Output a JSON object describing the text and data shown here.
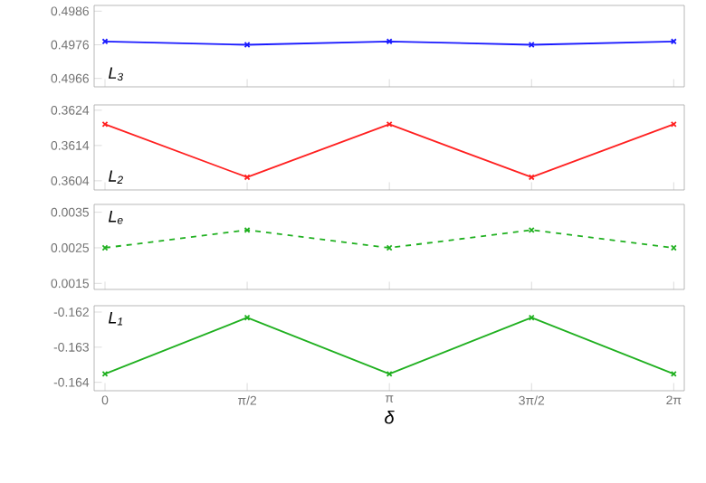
{
  "chart_data": [
    {
      "type": "line",
      "x": [
        0,
        1.5708,
        3.1416,
        4.7124,
        6.2832
      ],
      "xlim": [
        -0.12,
        6.4
      ],
      "xticks": [
        {
          "value": 0,
          "label": null
        },
        {
          "value": 1.5708,
          "label": null
        },
        {
          "value": 3.1416,
          "label": null
        },
        {
          "value": 4.7124,
          "label": null
        },
        {
          "value": 6.2832,
          "label": null
        }
      ],
      "ylim": [
        0.49635,
        0.49877
      ],
      "yticks": [
        0.4966,
        0.4976,
        0.4986
      ],
      "tick_labels": "y",
      "marker": "cross",
      "line_style": "solid",
      "annotations": [
        "L$_{3}$"
      ],
      "series": [
        {
          "color": "#1a1aff",
          "values": [
            0.4977,
            0.4976,
            0.4977,
            0.4976,
            0.4977
          ]
        }
      ]
    },
    {
      "type": "line",
      "x": [
        0,
        1.5708,
        3.1416,
        4.7124,
        6.2832
      ],
      "xlim": [
        -0.12,
        6.4
      ],
      "xticks": [
        {
          "value": 0,
          "label": null
        },
        {
          "value": 1.5708,
          "label": null
        },
        {
          "value": 3.1416,
          "label": null
        },
        {
          "value": 4.7124,
          "label": null
        },
        {
          "value": 6.2832,
          "label": null
        }
      ],
      "ylim": [
        0.36014,
        0.36255
      ],
      "yticks": [
        0.3604,
        0.3614,
        0.3624
      ],
      "tick_labels": "y",
      "marker": "cross",
      "line_style": "solid",
      "annotations": [
        "L$_{2}$"
      ],
      "series": [
        {
          "color": "#ff2020",
          "values": [
            0.362,
            0.3605,
            0.362,
            0.3605,
            0.362
          ]
        }
      ]
    },
    {
      "type": "line",
      "x": [
        0,
        1.5708,
        3.1416,
        4.7124,
        6.2832
      ],
      "xlim": [
        -0.12,
        6.4
      ],
      "xticks": [
        {
          "value": 0,
          "label": null
        },
        {
          "value": 1.5708,
          "label": null
        },
        {
          "value": 3.1416,
          "label": null
        },
        {
          "value": 4.7124,
          "label": null
        },
        {
          "value": 6.2832,
          "label": null
        }
      ],
      "ylim": [
        0.00133,
        0.00372
      ],
      "yticks": [
        0.0015,
        0.0025,
        0.0035
      ],
      "tick_labels": "y",
      "marker": "cross",
      "line_style": "dashed",
      "annotations": [
        "L$_{e}$"
      ],
      "series": [
        {
          "color": "#20b020",
          "values": [
            0.0025,
            0.003,
            0.0025,
            0.003,
            0.0025
          ]
        }
      ]
    },
    {
      "type": "line",
      "x": [
        0,
        1.5708,
        3.1416,
        4.7124,
        6.2832
      ],
      "xlim": [
        -0.12,
        6.4
      ],
      "xticks": [
        {
          "value": 0,
          "label": "0"
        },
        {
          "value": 1.5708,
          "label": "π/2"
        },
        {
          "value": 3.1416,
          "label": "π"
        },
        {
          "value": 4.7124,
          "label": "3π/2"
        },
        {
          "value": 6.2832,
          "label": "2π"
        }
      ],
      "ylim": [
        -0.16424,
        -0.16182
      ],
      "yticks": [
        -0.164,
        -0.163,
        -0.162
      ],
      "xlabel": "δ",
      "marker": "cross",
      "line_style": "solid",
      "annotations": [
        "L$_{1}$"
      ],
      "series": [
        {
          "color": "#20b020",
          "values": [
            -0.16376,
            -0.16216,
            -0.16376,
            -0.16216,
            -0.16376
          ]
        }
      ]
    }
  ]
}
